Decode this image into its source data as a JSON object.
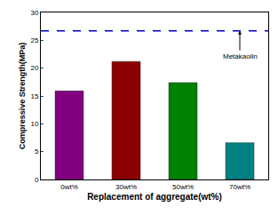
{
  "chart_data": {
    "type": "bar",
    "x_label": "Replacement of aggregate(wt%)",
    "y_label": "Compressive Strength(MPa)",
    "categories": [
      "0wt%",
      "30wt%",
      "50wt%",
      "70wt%"
    ],
    "values": [
      15.9,
      21.2,
      17.4,
      6.6
    ],
    "colors": [
      "#800080",
      "#8b0000",
      "#008000",
      "#008080"
    ],
    "ylim": [
      0,
      30
    ],
    "yticks": [
      0,
      5,
      10,
      15,
      20,
      25,
      30
    ],
    "grid": false,
    "reference_lines": [
      {
        "value": 26.7,
        "label": "Metakaolin",
        "color": "#0000cc",
        "line_style": "dash"
      }
    ]
  }
}
